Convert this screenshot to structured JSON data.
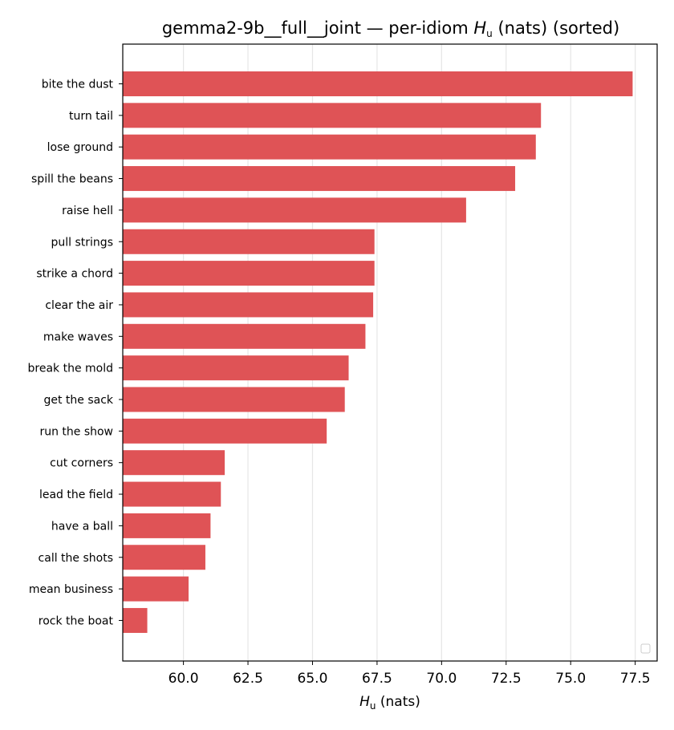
{
  "chart_data": {
    "type": "bar",
    "orientation": "horizontal",
    "title_prefix": "gemma2-9b__full__joint — per-idiom ",
    "title_symbol": "H",
    "title_subscript": "u",
    "title_suffix": " (nats) (sorted)",
    "xlabel_symbol": "H",
    "xlabel_subscript": "u",
    "xlabel_suffix": " (nats)",
    "ylabel": "",
    "categories": [
      "bite the dust",
      "turn tail",
      "lose ground",
      "spill the beans",
      "raise hell",
      "pull strings",
      "strike a chord",
      "clear the air",
      "make waves",
      "break the mold",
      "get the sack",
      "run the show",
      "cut corners",
      "lead the field",
      "have a ball",
      "call the shots",
      "mean business",
      "rock the boat"
    ],
    "values": [
      77.4,
      73.85,
      73.65,
      72.85,
      70.95,
      67.4,
      67.4,
      67.35,
      67.05,
      66.4,
      66.25,
      65.55,
      61.6,
      61.45,
      61.05,
      60.85,
      60.2,
      58.6
    ],
    "xlim": [
      57.65,
      78.35
    ],
    "xticks": [
      "60.0",
      "62.5",
      "65.0",
      "67.5",
      "70.0",
      "72.5",
      "75.0",
      "77.5"
    ],
    "xtick_values": [
      60.0,
      62.5,
      65.0,
      67.5,
      70.0,
      72.5,
      75.0,
      77.5
    ],
    "grid_x": true,
    "legend": "bottom-right",
    "bar_color": "#df5356"
  }
}
